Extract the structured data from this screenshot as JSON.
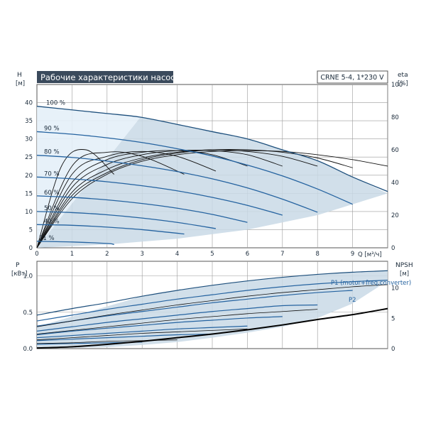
{
  "header": {
    "title": "Рабочие характеристики насоса",
    "model": "CRNE 5-4, 1*230 V"
  },
  "colors": {
    "curve_dark": "#1d4f7c",
    "curve_blue": "#2563a0",
    "region_fill": "#c9d9e6",
    "region_light": "#e4eff8",
    "grid": "#9a9a9a",
    "title_bg": "#3a4a5c"
  },
  "chart_data": [
    {
      "type": "line",
      "name": "head",
      "ylabel_left": "H",
      "yunit_left": "[м]",
      "ylabel_right": "eta",
      "yunit_right": "[%]",
      "xlabel": "Q [м³/ч]",
      "xlim": [
        0,
        10
      ],
      "ylim": [
        0,
        45
      ],
      "yticks_left": [
        0,
        5,
        10,
        15,
        20,
        25,
        30,
        35,
        40
      ],
      "yticks_right": [
        0,
        20,
        40,
        60,
        80,
        100
      ],
      "eta_ylim": [
        0,
        100
      ],
      "xticks": [
        0,
        1,
        2,
        3,
        4,
        5,
        6,
        7,
        8,
        9
      ],
      "grid": true,
      "operating_region": [
        [
          0,
          0
        ],
        [
          2.95,
          36
        ],
        [
          4,
          34
        ],
        [
          5,
          32
        ],
        [
          6,
          30
        ],
        [
          7,
          27
        ],
        [
          8,
          24
        ],
        [
          9,
          19.5
        ],
        [
          10,
          15
        ],
        [
          8,
          9
        ],
        [
          6,
          5
        ],
        [
          4,
          2.5
        ],
        [
          2,
          0.9
        ],
        [
          0,
          0
        ]
      ],
      "light_region": [
        [
          0,
          39
        ],
        [
          2.95,
          36
        ],
        [
          0,
          0
        ]
      ],
      "series": [
        {
          "name": "100 %",
          "x": [
            0,
            1,
            2,
            2.95,
            4,
            5,
            6,
            7,
            8,
            9,
            10
          ],
          "y": [
            39,
            38,
            37,
            36,
            34,
            32,
            30,
            27,
            24,
            19.5,
            15.5
          ]
        },
        {
          "name": "90 %",
          "x": [
            0,
            1,
            2,
            3,
            4,
            5,
            6,
            7,
            8,
            9
          ],
          "y": [
            32,
            31.3,
            30.3,
            29,
            27.3,
            25.3,
            22.8,
            19.8,
            16.2,
            12
          ]
        },
        {
          "name": "80 %",
          "x": [
            0,
            1,
            2,
            3,
            4,
            5,
            6,
            7,
            8
          ],
          "y": [
            25.5,
            24.9,
            23.9,
            22.6,
            21,
            19,
            16.5,
            13.4,
            9.8
          ]
        },
        {
          "name": "70 %",
          "x": [
            0,
            1,
            2,
            3,
            4,
            5,
            6,
            7
          ],
          "y": [
            19.5,
            19,
            18.2,
            17.1,
            15.7,
            13.9,
            11.7,
            9
          ]
        },
        {
          "name": "60 %",
          "x": [
            0,
            1,
            2,
            3,
            4,
            5,
            6
          ],
          "y": [
            14.3,
            13.9,
            13.2,
            12.2,
            10.9,
            9.2,
            7
          ]
        },
        {
          "name": "50 %",
          "x": [
            0,
            1,
            2,
            3,
            4,
            5.1
          ],
          "y": [
            10,
            9.7,
            9.1,
            8.2,
            7,
            5.3
          ]
        },
        {
          "name": "40 %",
          "x": [
            0,
            1,
            2,
            3,
            4.2
          ],
          "y": [
            6.4,
            6.2,
            5.7,
            5,
            3.8
          ]
        },
        {
          "name": "21 %",
          "x": [
            0,
            1,
            2,
            2.2
          ],
          "y": [
            1.8,
            1.6,
            1.2,
            0.9
          ]
        }
      ],
      "eta_series": [
        {
          "name": "eta 100 %",
          "x": [
            0,
            1,
            2,
            3,
            4,
            5,
            6,
            7,
            8,
            9,
            10
          ],
          "y": [
            0,
            30,
            45,
            53,
            57,
            59,
            59.5,
            59,
            57,
            54,
            50
          ]
        },
        {
          "name": "eta 90 %",
          "x": [
            0,
            1,
            2,
            3,
            4,
            5,
            6,
            7,
            8,
            9
          ],
          "y": [
            0,
            32,
            46,
            54,
            58,
            60,
            60,
            58.5,
            55,
            49
          ]
        },
        {
          "name": "eta 80 %",
          "x": [
            0,
            1,
            2,
            3,
            4,
            5,
            6,
            7,
            8
          ],
          "y": [
            0,
            34,
            48,
            55,
            58.5,
            60,
            59,
            56,
            50
          ]
        },
        {
          "name": "eta 70 %",
          "x": [
            0,
            1,
            2,
            3,
            4,
            5,
            6,
            7
          ],
          "y": [
            0,
            37,
            51,
            57,
            59.5,
            59.5,
            57,
            50
          ]
        },
        {
          "name": "eta 60 %",
          "x": [
            0,
            1,
            2,
            3,
            4,
            5,
            6
          ],
          "y": [
            0,
            40,
            54,
            58.5,
            59.5,
            57,
            50
          ]
        },
        {
          "name": "eta 50 %",
          "x": [
            0,
            1,
            2,
            3,
            4,
            5.1
          ],
          "y": [
            0,
            45,
            56,
            59,
            56,
            47
          ]
        },
        {
          "name": "eta 40 %",
          "x": [
            0,
            1,
            2,
            3,
            4.2
          ],
          "y": [
            0,
            50,
            58.5,
            56,
            45
          ]
        },
        {
          "name": "eta 21 %",
          "x": [
            0,
            0.7,
            1.4,
            2.2
          ],
          "y": [
            0,
            50,
            60,
            45
          ]
        }
      ]
    },
    {
      "type": "line",
      "name": "power",
      "ylabel_left": "P",
      "yunit_left": "[кВт]",
      "ylabel_right": "NPSH",
      "yunit_right": "[м]",
      "xlim": [
        0,
        10
      ],
      "ylim": [
        0,
        1.2
      ],
      "yticks_left": [
        0,
        0.5,
        1
      ],
      "ytick_labels_left": [
        "0.0",
        "0.5",
        "1.0"
      ],
      "yticks_right": [
        0,
        5,
        10
      ],
      "npsh_ylim": [
        0,
        14.4
      ],
      "grid": true,
      "annotations": [
        {
          "text": "P1 (motor+freq.converter)"
        },
        {
          "text": "P2"
        }
      ],
      "operating_region": [
        [
          0,
          0.3
        ],
        [
          3,
          0.72
        ],
        [
          5,
          0.87
        ],
        [
          7,
          0.98
        ],
        [
          8.5,
          1.04
        ],
        [
          10,
          1.08
        ],
        [
          10,
          0.93
        ],
        [
          9,
          0.62
        ],
        [
          8,
          0.42
        ],
        [
          7,
          0.3
        ],
        [
          6,
          0.22
        ],
        [
          5,
          0.15
        ],
        [
          4,
          0.09
        ],
        [
          3,
          0.05
        ],
        [
          2,
          0.02
        ],
        [
          0,
          0
        ]
      ],
      "series": [
        {
          "name": "P1 100 %",
          "x": [
            0,
            1,
            2,
            3,
            4,
            5,
            6,
            7,
            8,
            9,
            10
          ],
          "y": [
            0.46,
            0.55,
            0.63,
            0.72,
            0.8,
            0.87,
            0.93,
            0.98,
            1.02,
            1.05,
            1.07
          ]
        },
        {
          "name": "P1 90 %",
          "x": [
            0,
            1,
            2,
            3,
            4,
            5,
            6,
            7,
            8,
            9,
            10
          ],
          "y": [
            0.38,
            0.46,
            0.54,
            0.61,
            0.68,
            0.74,
            0.8,
            0.85,
            0.89,
            0.92,
            0.94
          ]
        },
        {
          "name": "P1 80 %",
          "x": [
            0,
            1,
            2,
            3,
            4,
            5,
            6,
            7,
            8,
            9
          ],
          "y": [
            0.31,
            0.38,
            0.45,
            0.51,
            0.57,
            0.63,
            0.68,
            0.73,
            0.77,
            0.8
          ]
        },
        {
          "name": "P1 70 %",
          "x": [
            0,
            1,
            2,
            3,
            4,
            5,
            6,
            7,
            8
          ],
          "y": [
            0.24,
            0.3,
            0.36,
            0.41,
            0.46,
            0.51,
            0.55,
            0.59,
            0.6
          ]
        },
        {
          "name": "P1 60 %",
          "x": [
            0,
            1,
            2,
            3,
            4,
            5,
            6,
            7
          ],
          "y": [
            0.19,
            0.24,
            0.28,
            0.32,
            0.36,
            0.39,
            0.42,
            0.44
          ]
        },
        {
          "name": "P1 50 %",
          "x": [
            0,
            1,
            2,
            3,
            4,
            5,
            6
          ],
          "y": [
            0.15,
            0.18,
            0.21,
            0.24,
            0.27,
            0.29,
            0.31
          ]
        },
        {
          "name": "P1 40 %",
          "x": [
            0,
            1,
            2,
            3,
            4,
            5
          ],
          "y": [
            0.11,
            0.13,
            0.15,
            0.17,
            0.19,
            0.2
          ]
        },
        {
          "name": "P1 21 %",
          "x": [
            0,
            1,
            2,
            3
          ],
          "y": [
            0.06,
            0.07,
            0.08,
            0.09
          ]
        },
        {
          "name": "P2 100 %",
          "x": [
            0,
            1,
            2,
            3,
            4,
            5,
            6,
            7,
            8,
            9,
            10
          ],
          "y": [
            0.3,
            0.38,
            0.46,
            0.53,
            0.6,
            0.66,
            0.72,
            0.77,
            0.81,
            0.85,
            0.88
          ]
        },
        {
          "name": "P2 80 %",
          "x": [
            0,
            1,
            2,
            3,
            4,
            5,
            6,
            7,
            8
          ],
          "y": [
            0.2,
            0.25,
            0.3,
            0.35,
            0.4,
            0.44,
            0.48,
            0.51,
            0.54
          ]
        },
        {
          "name": "P2 60 %",
          "x": [
            0,
            1,
            2,
            3,
            4,
            5,
            6
          ],
          "y": [
            0.12,
            0.15,
            0.18,
            0.21,
            0.23,
            0.25,
            0.27
          ]
        },
        {
          "name": "P2 40 %",
          "x": [
            0,
            1,
            2,
            3,
            4
          ],
          "y": [
            0.07,
            0.08,
            0.1,
            0.11,
            0.12
          ]
        }
      ],
      "npsh_series": [
        {
          "name": "NPSH",
          "x": [
            0,
            1,
            2,
            3,
            4,
            5,
            6,
            7,
            8,
            9,
            10
          ],
          "y": [
            0.1,
            0.3,
            0.7,
            1.2,
            1.8,
            2.4,
            3.1,
            3.9,
            4.8,
            5.6,
            6.6
          ]
        }
      ]
    }
  ]
}
